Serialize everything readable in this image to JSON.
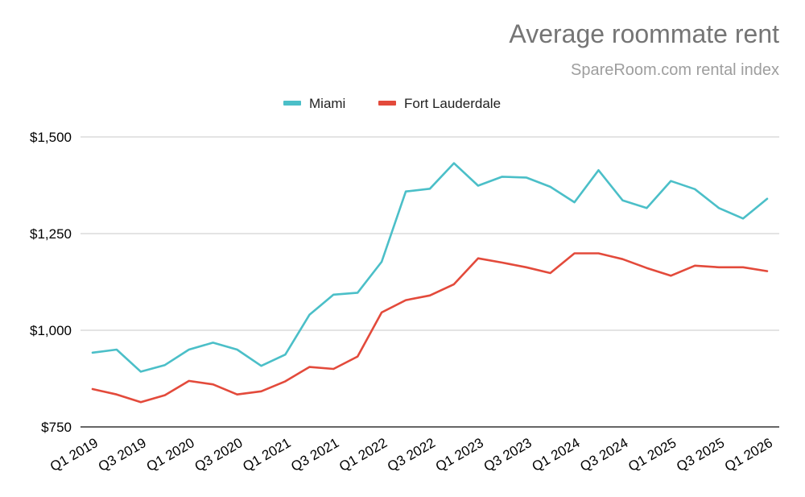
{
  "chart_data": {
    "type": "line",
    "title": "Average roommate rent",
    "subtitle": "SpareRoom.com rental index",
    "xlabel": "",
    "ylabel": "",
    "x": [
      "Q1 2019",
      "Q2 2019",
      "Q3 2019",
      "Q4 2019",
      "Q1 2020",
      "Q2 2020",
      "Q3 2020",
      "Q4 2020",
      "Q1 2021",
      "Q2 2021",
      "Q3 2021",
      "Q4 2021",
      "Q1 2022",
      "Q2 2022",
      "Q3 2022",
      "Q4 2022",
      "Q1 2023",
      "Q2 2023",
      "Q3 2023",
      "Q4 2023",
      "Q1 2024",
      "Q2 2024",
      "Q3 2024",
      "Q4 2024",
      "Q1 2025",
      "Q2 2025",
      "Q3 2025",
      "Q4 2025",
      "Q1 2026"
    ],
    "x_tick_labels": [
      "Q1 2019",
      "Q3 2019",
      "Q1 2020",
      "Q3 2020",
      "Q1 2021",
      "Q3 2021",
      "Q1 2022",
      "Q3 2022",
      "Q1 2023",
      "Q3 2023",
      "Q1 2024",
      "Q3 2024",
      "Q1 2025",
      "Q3 2025",
      "Q1 2026"
    ],
    "y_tick_labels": [
      "$750",
      "$1,000",
      "$1,250",
      "$1,500"
    ],
    "ylim": [
      750,
      1500
    ],
    "y_ticks": [
      750,
      1000,
      1250,
      1500
    ],
    "grid": true,
    "legend_position": "top-center",
    "series": [
      {
        "name": "Miami",
        "color": "#4bbfc8",
        "values": [
          942,
          950,
          893,
          910,
          950,
          968,
          950,
          908,
          937,
          1040,
          1092,
          1097,
          1177,
          1359,
          1366,
          1432,
          1374,
          1397,
          1395,
          1371,
          1331,
          1414,
          1336,
          1316,
          1386,
          1365,
          1316,
          1289,
          1340
        ]
      },
      {
        "name": "Fort Lauderdale",
        "color": "#e34a3b",
        "values": [
          848,
          834,
          814,
          832,
          869,
          860,
          834,
          842,
          868,
          905,
          900,
          932,
          1046,
          1078,
          1090,
          1119,
          1186,
          1175,
          1163,
          1148,
          1199,
          1199,
          1184,
          1161,
          1141,
          1167,
          1163,
          1163,
          1153
        ]
      }
    ]
  }
}
